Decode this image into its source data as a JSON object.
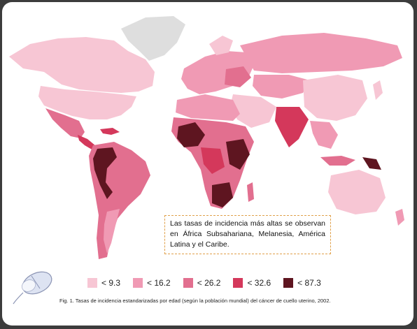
{
  "callout": {
    "text": "Las tasas de incidencia más altas se observan en África Subsahariana, Melanesia, América Latina y el Caribe."
  },
  "legend": {
    "items": [
      {
        "label": "< 9.3",
        "color": "#f7c6d4"
      },
      {
        "label": "< 16.2",
        "color": "#f09ab4"
      },
      {
        "label": "< 26.2",
        "color": "#e26f8f"
      },
      {
        "label": "< 32.6",
        "color": "#d4385b"
      },
      {
        "label": "< 87.3",
        "color": "#5e1520"
      }
    ]
  },
  "caption": {
    "text": "Fig. 1. Tasas de incidencia estandarizadas por edad (según la población mundial) del cáncer de cuello uterino, 2002."
  },
  "colors": {
    "no_data": "#dedede",
    "frame": "#ffffff",
    "callout_border": "#e0a04a"
  },
  "icons": {
    "corner": "computer-mouse-icon"
  }
}
